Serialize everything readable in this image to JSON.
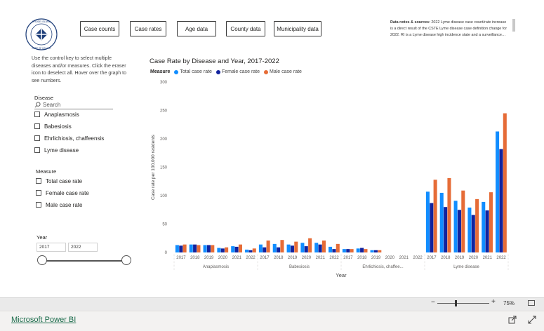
{
  "nav": {
    "buttons": [
      "Case counts",
      "Case rates",
      "Age data",
      "County data",
      "Municipality data"
    ]
  },
  "notes": {
    "bold": "Data notes & sources:",
    "text": " 2022 Lyme disease case count/rate increase is a direct result of the CSTE Lyme disease case definition change for 2022. RI is a Lyme disease high incidence state and a surveillance…"
  },
  "instructions": "Use the control key to select multiple diseases and/or measures. Click the eraser icon to deselect all. Hover over the graph to see numbers.",
  "disease_slicer": {
    "title": "Disease",
    "search_placeholder": "Search",
    "items": [
      "Anaplasmosis",
      "Babesiosis",
      "Ehrlichiosis, chaffeensis",
      "Lyme disease"
    ]
  },
  "measure_slicer": {
    "title": "Measure",
    "items": [
      "Total case rate",
      "Female case rate",
      "Male case rate"
    ]
  },
  "year_slicer": {
    "title": "Year",
    "start": "2017",
    "end": "2022"
  },
  "colors": {
    "total": "#118dff",
    "female": "#12239e",
    "male": "#e66c37"
  },
  "chart_data": {
    "type": "bar",
    "title": "Case Rate by Disease and Year, 2017-2022",
    "legend_title": "Measure",
    "ylabel": "Case rate per 100,000 residents",
    "xlabel": "Year",
    "ylim": [
      0,
      300
    ],
    "yticks": [
      0,
      50,
      100,
      150,
      200,
      250,
      300
    ],
    "grid": false,
    "legend_position": "top-left",
    "groups": [
      {
        "name": "Anaplasmosis",
        "years": [
          "2017",
          "2018",
          "2019",
          "2020",
          "2021",
          "2022"
        ]
      },
      {
        "name": "Babesiosis",
        "years": [
          "2017",
          "2018",
          "2019",
          "2020",
          "2021",
          "2022"
        ]
      },
      {
        "name": "Ehrlichiosis, chaffee...",
        "years": [
          "2017",
          "2018",
          "2019",
          "2020",
          "2021",
          "2022"
        ]
      },
      {
        "name": "Lyme disease",
        "years": [
          "2017",
          "2018",
          "2019",
          "2020",
          "2021",
          "2022"
        ]
      }
    ],
    "series": [
      {
        "name": "Total case rate",
        "values": [
          [
            13,
            14,
            13,
            8,
            11,
            5
          ],
          [
            14,
            15,
            14,
            17,
            17,
            10
          ],
          [
            6,
            7,
            4,
            0,
            0,
            0
          ],
          [
            107,
            105,
            91,
            79,
            89,
            213
          ]
        ]
      },
      {
        "name": "Female case rate",
        "values": [
          [
            12,
            14,
            13,
            7,
            10,
            4
          ],
          [
            9,
            9,
            12,
            11,
            14,
            6
          ],
          [
            6,
            8,
            4,
            0,
            0,
            0
          ],
          [
            87,
            80,
            75,
            66,
            74,
            182
          ]
        ]
      },
      {
        "name": "Male case rate",
        "values": [
          [
            14,
            13,
            13,
            9,
            14,
            7
          ],
          [
            21,
            22,
            19,
            25,
            21,
            15
          ],
          [
            6,
            6,
            4,
            0,
            0,
            0
          ],
          [
            128,
            131,
            109,
            94,
            106,
            245
          ]
        ]
      }
    ]
  },
  "zoom": {
    "percent": "75%"
  },
  "footer": {
    "link": "Microsoft Power BI"
  }
}
